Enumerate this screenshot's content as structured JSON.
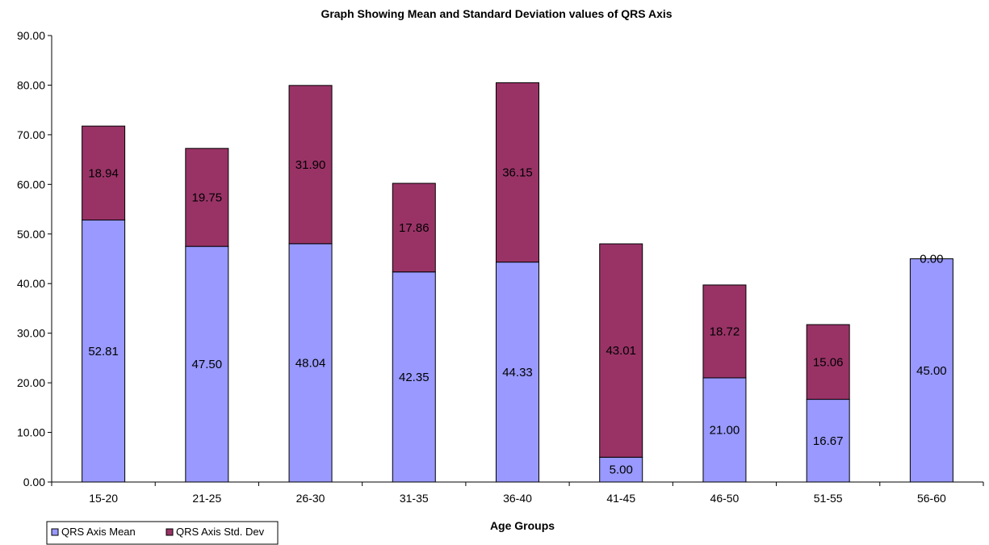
{
  "chart_data": {
    "type": "bar",
    "stacked": true,
    "title": "Graph Showing Mean and Standard Deviation values of QRS Axis",
    "xlabel": "Age Groups",
    "ylabel": "",
    "ylim": [
      0,
      90
    ],
    "y_ticks": [
      "0.00",
      "10.00",
      "20.00",
      "30.00",
      "40.00",
      "50.00",
      "60.00",
      "70.00",
      "80.00",
      "90.00"
    ],
    "categories": [
      "15-20",
      "21-25",
      "26-30",
      "31-35",
      "36-40",
      "41-45",
      "46-50",
      "51-55",
      "56-60"
    ],
    "series": [
      {
        "name": "QRS Axis Mean",
        "color": "#9999ff",
        "values": [
          52.81,
          47.5,
          48.04,
          42.35,
          44.33,
          5.0,
          21.0,
          16.67,
          45.0
        ],
        "labels": [
          "52.81",
          "47.50",
          "48.04",
          "42.35",
          "44.33",
          "5.00",
          "21.00",
          "16.67",
          "45.00"
        ]
      },
      {
        "name": "QRS Axis Std. Dev",
        "color": "#993366",
        "values": [
          18.94,
          19.75,
          31.9,
          17.86,
          36.15,
          43.01,
          18.72,
          15.06,
          0.0
        ],
        "labels": [
          "18.94",
          "19.75",
          "31.90",
          "17.86",
          "36.15",
          "43.01",
          "18.72",
          "15.06",
          "0.00"
        ]
      }
    ],
    "grid": false,
    "legend_position": "bottom-left"
  }
}
